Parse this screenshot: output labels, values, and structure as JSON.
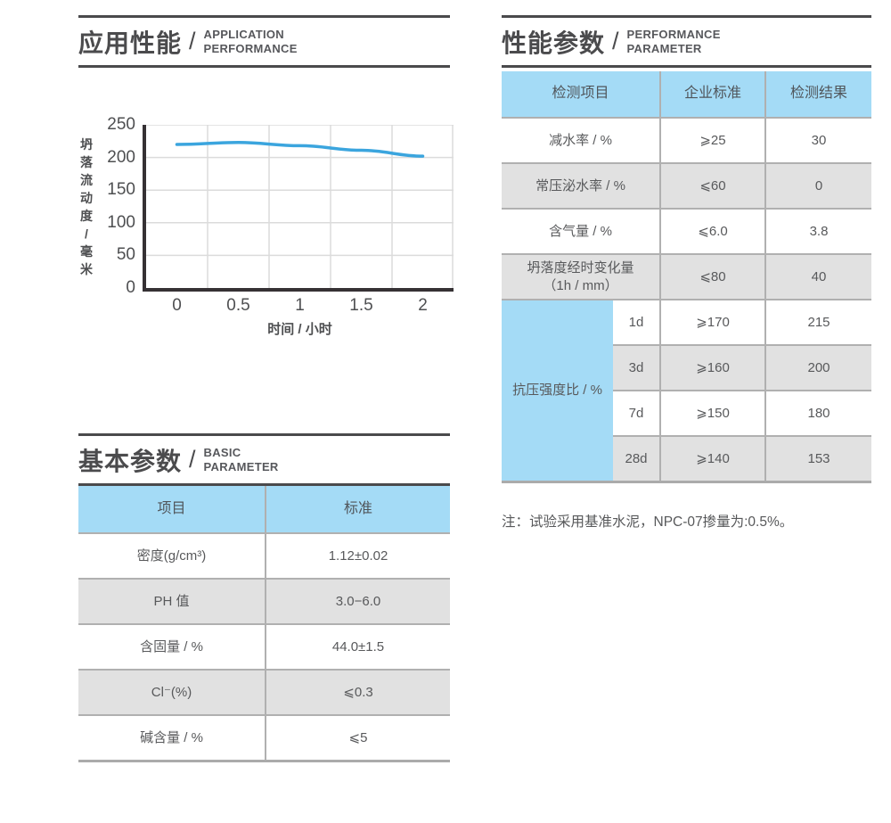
{
  "colors": {
    "accent_blue": "#A4DBF6",
    "line_blue": "#3BA5DE",
    "row_gray": "#E1E1E1",
    "rule_dark": "#4A4A4C",
    "axis_dark": "#363134",
    "grid_gray": "#DBDBDB",
    "border_gray": "#B0B0B0",
    "text_gray": "#58595B"
  },
  "sections": {
    "application": {
      "zh": "应用性能",
      "slash": "/",
      "en_line1": "APPLICATION",
      "en_line2": "PERFORMANCE"
    },
    "basic": {
      "zh": "基本参数",
      "slash": "/",
      "en_line1": "BASIC",
      "en_line2": "PARAMETER"
    },
    "performance": {
      "zh": "性能参数",
      "slash": "/",
      "en_line1": "PERFORMANCE",
      "en_line2": "PARAMETER"
    }
  },
  "chart_data": {
    "type": "line",
    "title": "",
    "x": [
      0,
      0.5,
      1,
      1.5,
      2
    ],
    "x_tick_labels": [
      "0",
      "0.5",
      "1",
      "1.5",
      "2"
    ],
    "values": [
      220,
      223,
      218,
      211,
      202
    ],
    "series_name": "坍落流动度",
    "xlabel": "时间 / 小时",
    "ylabel": "坍落流动度 / 毫米",
    "ylabel_chars": [
      "坍",
      "落",
      "流",
      "动",
      "度",
      "/",
      "毫",
      "米"
    ],
    "y_ticks": [
      250,
      200,
      150,
      100,
      50,
      0
    ],
    "y_tick_labels": [
      "250",
      "200",
      "150",
      "100",
      "50",
      "0"
    ],
    "ylim": [
      0,
      250
    ],
    "xlim_categories": 5,
    "grid": true,
    "legend": "none",
    "line_color": "#3BA5DE"
  },
  "basic_table": {
    "headers": [
      "项目",
      "标准"
    ],
    "rows": [
      [
        "密度(g/cm³)",
        "1.12±0.02"
      ],
      [
        "PH 值",
        "3.0−6.0"
      ],
      [
        "含固量 / %",
        "44.0±1.5"
      ],
      [
        "Cl⁻(%)",
        "⩽0.3"
      ],
      [
        "碱含量 / %",
        "⩽5"
      ]
    ]
  },
  "performance_table": {
    "headers": [
      "检测项目",
      "企业标准",
      "检测结果"
    ],
    "rows": [
      [
        "减水率 / %",
        "⩾25",
        "30"
      ],
      [
        "常压泌水率 / %",
        "⩽60",
        "0"
      ],
      [
        "含气量 / %",
        "⩽6.0",
        "3.8"
      ],
      [
        "坍落度经时变化量\n（1h / mm）",
        "⩽80",
        "40"
      ]
    ],
    "merged_group": {
      "label": "抗压强度比 / %",
      "rows": [
        [
          "1d",
          "⩾170",
          "215"
        ],
        [
          "3d",
          "⩾160",
          "200"
        ],
        [
          "7d",
          "⩾150",
          "180"
        ],
        [
          "28d",
          "⩾140",
          "153"
        ]
      ]
    }
  },
  "note": "注：试验采用基准水泥，NPC-07掺量为:0.5%。"
}
